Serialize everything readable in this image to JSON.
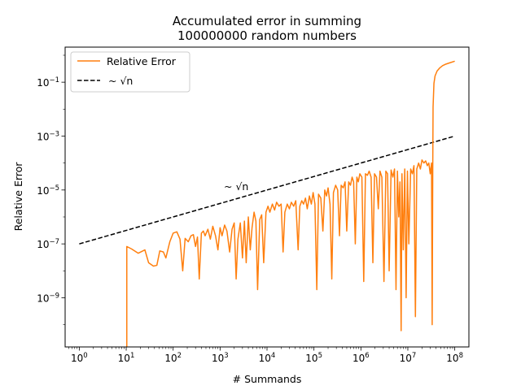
{
  "chart_data": {
    "type": "line",
    "title": "Accumulated error in summing\n100000000 random numbers",
    "title_lines": [
      "Accumulated error in summing",
      "100000000 random numbers"
    ],
    "xlabel": "# Summands",
    "ylabel": "Relative Error",
    "xscale": "log",
    "yscale": "log",
    "xlim": [
      0.5,
      200000000
    ],
    "ylim": [
      1.5e-11,
      2.0
    ],
    "x_ticks": [
      1,
      10,
      100,
      1000,
      10000,
      100000,
      1000000,
      10000000,
      100000000
    ],
    "x_tick_labels": [
      [
        "10",
        "0"
      ],
      [
        "10",
        "1"
      ],
      [
        "10",
        "2"
      ],
      [
        "10",
        "3"
      ],
      [
        "10",
        "4"
      ],
      [
        "10",
        "5"
      ],
      [
        "10",
        "6"
      ],
      [
        "10",
        "7"
      ],
      [
        "10",
        "8"
      ]
    ],
    "y_ticks": [
      1e-09,
      1e-07,
      1e-05,
      0.001,
      0.1
    ],
    "y_tick_labels": [
      [
        "10",
        "−9"
      ],
      [
        "10",
        "−7"
      ],
      [
        "10",
        "−5"
      ],
      [
        "10",
        "−3"
      ],
      [
        "10",
        "−1"
      ]
    ],
    "grid": false,
    "legend_position": "upper-left",
    "series": [
      {
        "name": "Relative Error",
        "color": "#ff7f0e",
        "style": "solid",
        "points": [
          [
            10.3,
            1.5e-11
          ],
          [
            10.3,
            8e-08
          ],
          [
            13,
            6.5e-08
          ],
          [
            18,
            4.5e-08
          ],
          [
            25,
            6e-08
          ],
          [
            30,
            2e-08
          ],
          [
            38,
            1.5e-08
          ],
          [
            45,
            1.6e-08
          ],
          [
            52,
            5.5e-08
          ],
          [
            62,
            5e-08
          ],
          [
            70,
            3e-08
          ],
          [
            85,
            1.2e-07
          ],
          [
            100,
            2.5e-07
          ],
          [
            120,
            2.8e-07
          ],
          [
            140,
            1.5e-07
          ],
          [
            160,
            1e-08
          ],
          [
            180,
            1.6e-07
          ],
          [
            210,
            1.2e-07
          ],
          [
            240,
            2e-07
          ],
          [
            270,
            2.2e-07
          ],
          [
            300,
            8e-08
          ],
          [
            330,
            1.8e-07
          ],
          [
            360,
            5e-09
          ],
          [
            400,
            2.5e-07
          ],
          [
            440,
            3e-07
          ],
          [
            480,
            2e-07
          ],
          [
            550,
            3.5e-07
          ],
          [
            620,
            1.5e-07
          ],
          [
            700,
            4.5e-07
          ],
          [
            800,
            2e-07
          ],
          [
            900,
            6e-08
          ],
          [
            1000,
            4e-07
          ],
          [
            1100,
            2e-07
          ],
          [
            1250,
            5e-07
          ],
          [
            1400,
            3e-07
          ],
          [
            1600,
            5e-08
          ],
          [
            1800,
            3.5e-07
          ],
          [
            2000,
            6e-07
          ],
          [
            2200,
            5e-09
          ],
          [
            2400,
            1.5e-07
          ],
          [
            2700,
            6e-07
          ],
          [
            3000,
            3e-08
          ],
          [
            3300,
            7e-07
          ],
          [
            3600,
            2e-08
          ],
          [
            4000,
            1e-06
          ],
          [
            4400,
            6e-08
          ],
          [
            4800,
            4e-07
          ],
          [
            5300,
            1.5e-06
          ],
          [
            5800,
            7e-07
          ],
          [
            6300,
            2e-09
          ],
          [
            7000,
            8e-07
          ],
          [
            7700,
            1.2e-06
          ],
          [
            8500,
            2e-08
          ],
          [
            9500,
            1.5e-06
          ],
          [
            10500,
            2.5e-06
          ],
          [
            11500,
            1.5e-06
          ],
          [
            13000,
            3e-06
          ],
          [
            14500,
            1.8e-06
          ],
          [
            16000,
            3.5e-06
          ],
          [
            18000,
            2.5e-06
          ],
          [
            20000,
            3e-06
          ],
          [
            22000,
            5e-08
          ],
          [
            24000,
            1.5e-06
          ],
          [
            27000,
            3e-06
          ],
          [
            30000,
            2e-06
          ],
          [
            33000,
            3.5e-06
          ],
          [
            37000,
            2.5e-06
          ],
          [
            41000,
            4e-06
          ],
          [
            46000,
            6e-08
          ],
          [
            50000,
            2.5e-06
          ],
          [
            55000,
            4e-06
          ],
          [
            60000,
            3e-06
          ],
          [
            66000,
            5e-06
          ],
          [
            72000,
            2e-06
          ],
          [
            80000,
            6e-06
          ],
          [
            88000,
            3e-06
          ],
          [
            96000,
            8e-06
          ],
          [
            105000,
            3e-06
          ],
          [
            115000,
            2e-09
          ],
          [
            125000,
            7e-06
          ],
          [
            140000,
            5e-06
          ],
          [
            155000,
            3e-07
          ],
          [
            170000,
            1e-05
          ],
          [
            185000,
            6e-06
          ],
          [
            200000,
            1.2e-05
          ],
          [
            220000,
            3e-06
          ],
          [
            240000,
            5e-09
          ],
          [
            260000,
            8e-06
          ],
          [
            290000,
            1.5e-05
          ],
          [
            320000,
            1e-05
          ],
          [
            350000,
            2e-07
          ],
          [
            380000,
            1.5e-05
          ],
          [
            420000,
            1.2e-05
          ],
          [
            460000,
            2e-05
          ],
          [
            500000,
            3e-07
          ],
          [
            550000,
            2e-05
          ],
          [
            600000,
            1.5e-05
          ],
          [
            650000,
            3e-05
          ],
          [
            700000,
            2e-05
          ],
          [
            760000,
            1e-07
          ],
          [
            820000,
            3e-05
          ],
          [
            880000,
            2e-05
          ],
          [
            950000,
            4e-05
          ],
          [
            1050000,
            3e-05
          ],
          [
            1150000,
            4e-09
          ],
          [
            1250000,
            4e-05
          ],
          [
            1380000,
            3.5e-05
          ],
          [
            1500000,
            5e-05
          ],
          [
            1650000,
            3e-05
          ],
          [
            1800000,
            2e-08
          ],
          [
            1950000,
            4e-05
          ],
          [
            2150000,
            3e-05
          ],
          [
            2350000,
            2e-06
          ],
          [
            2550000,
            5e-05
          ],
          [
            2800000,
            3e-05
          ],
          [
            3100000,
            4e-09
          ],
          [
            3400000,
            5e-05
          ],
          [
            3700000,
            4e-05
          ],
          [
            4000000,
            1e-08
          ],
          [
            4400000,
            5.5e-05
          ],
          [
            4800000,
            3e-05
          ],
          [
            5200000,
            6e-05
          ],
          [
            5600000,
            2e-09
          ],
          [
            6000000,
            5e-05
          ],
          [
            6400000,
            1e-06
          ],
          [
            6800000,
            2e-05
          ],
          [
            7200000,
            6e-11
          ],
          [
            7500000,
            4e-05
          ],
          [
            8000000,
            6e-08
          ],
          [
            8600000,
            6e-05
          ],
          [
            9200000,
            1e-09
          ],
          [
            9800000,
            5e-05
          ],
          [
            10500000,
            1e-07
          ],
          [
            11500000,
            6e-05
          ],
          [
            12500000,
            4e-05
          ],
          [
            13500000,
            8e-05
          ],
          [
            14500000,
            2e-10
          ],
          [
            15500000,
            6e-05
          ],
          [
            17000000,
            0.0001
          ],
          [
            18500000,
            6e-05
          ],
          [
            20000000,
            0.00013
          ],
          [
            22000000,
            0.0001
          ],
          [
            24000000,
            0.00012
          ],
          [
            26000000,
            8e-05
          ],
          [
            28000000,
            0.0001
          ],
          [
            30000000,
            4e-05
          ],
          [
            32000000,
            0.0001
          ],
          [
            33000000,
            1e-10
          ],
          [
            34000000,
            0.0001
          ],
          [
            34500000,
            0.012
          ],
          [
            36000000,
            0.09
          ],
          [
            38000000,
            0.17
          ],
          [
            42000000,
            0.26
          ],
          [
            48000000,
            0.34
          ],
          [
            55000000,
            0.41
          ],
          [
            65000000,
            0.47
          ],
          [
            80000000,
            0.53
          ],
          [
            100000000,
            0.6
          ]
        ]
      },
      {
        "name": "~ √n",
        "color": "#000000",
        "style": "dashed",
        "points": [
          [
            1,
            1e-07
          ],
          [
            100000000,
            0.001
          ]
        ]
      }
    ],
    "annotations": [
      {
        "text": "~ √n",
        "x": 1400,
        "y": 1.3e-05
      }
    ]
  }
}
